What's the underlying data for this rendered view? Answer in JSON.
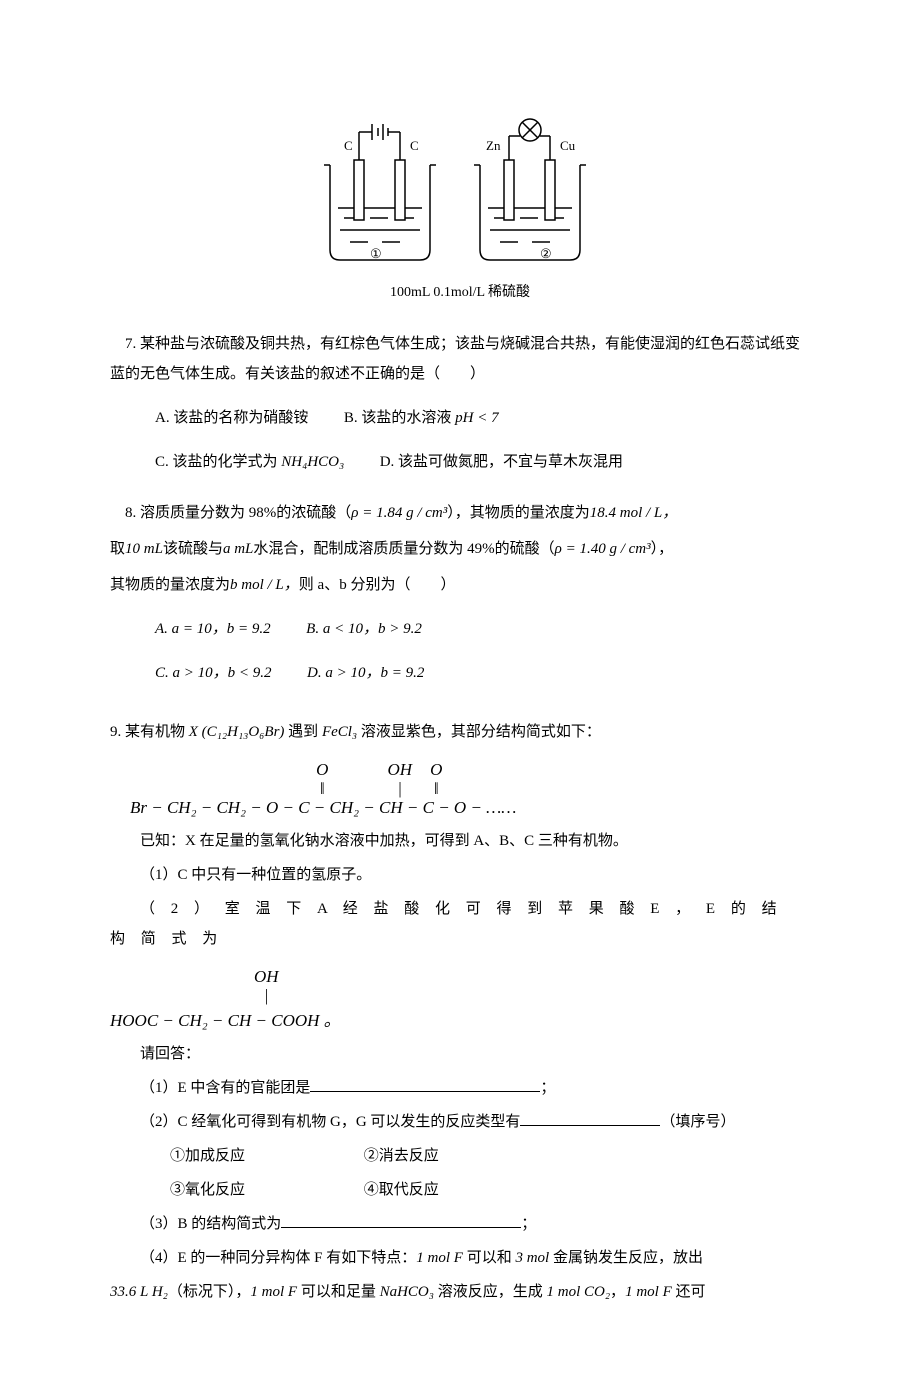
{
  "diagram": {
    "cell1": {
      "left_electrode": "C",
      "right_electrode": "C",
      "label": "①",
      "has_battery": true
    },
    "cell2": {
      "left_electrode": "Zn",
      "right_electrode": "Cu",
      "label": "②",
      "has_bulb": true
    },
    "caption": "100mL 0.1mol/L 稀硫酸",
    "stroke_color": "#000000",
    "bg_color": "#ffffff",
    "font_size": 13
  },
  "q7": {
    "stem": "7. 某种盐与浓硫酸及铜共热，有红棕色气体生成；该盐与烧碱混合共热，有能使湿润的红色石蕊试纸变蓝的无色气体生成。有关该盐的叙述不正确的是（　　）",
    "A": "A.  该盐的名称为硝酸铵",
    "B_pre": "B.  该盐的水溶液 ",
    "B_math": "pH < 7",
    "C_pre": "C.  该盐的化学式为 ",
    "C_math": "NH₄HCO₃",
    "D": "D.  该盐可做氮肥，不宜与草木灰混用"
  },
  "q8": {
    "line1_pre": "8. 溶质质量分数为 98%的浓硫酸（",
    "rho1": "ρ = 1.84 g / cm³",
    "line1_mid": "），其物质的量浓度为",
    "conc1": "18.4 mol / L，",
    "line2_pre": "取",
    "vol": "10 mL",
    "line2_mid1": "该硫酸与",
    "a_ml": "a mL",
    "line2_mid2": "水混合，配制成溶质质量分数为 49%的硫酸（",
    "rho2": "ρ = 1.40 g / cm³",
    "line2_end": "），",
    "line3_pre": "其物质的量浓度为",
    "bmol": "b mol / L，",
    "line3_end": "则 a、b 分别为（　　）",
    "A": "A.  a = 10，b = 9.2",
    "B": "B.  a < 10，b > 9.2",
    "C": "C.  a > 10，b < 9.2",
    "D": "D.  a > 10，b = 9.2"
  },
  "q9": {
    "stem_pre": "9. 某有机物 ",
    "X": "X (C₁₂H₁₃O₆Br)",
    "stem_mid": " 遇到 ",
    "fecl3": "FeCl₃",
    "stem_end": " 溶液显紫色，其部分结构简式如下：",
    "structure_top_O1": "O",
    "structure_top_OH": "OH",
    "structure_top_O2": "O",
    "structure_main": "Br − CH₂ − CH₂ − O − C − CH₂ − CH − C − O − ……",
    "known": "已知：X 在足量的氢氧化钠水溶液中加热，可得到 A、B、C 三种有机物。",
    "p1": "（1）C 中只有一种位置的氢原子。",
    "p2": "（ 2 ） 室 温 下  A  经 盐 酸 化 可 得 到 苹 果 酸  E ， E  的 结 构 简 式 为",
    "malic_top": "OH",
    "malic_main": "HOOC − CH₂ − CH − COOH 。",
    "ans_label": "请回答：",
    "a1": "（1）E 中含有的官能团是",
    "a1_end": "；",
    "a2": "（2）C 经氧化可得到有机物 G，G 可以发生的反应类型有",
    "a2_end": "（填序号）",
    "opt1": "①加成反应",
    "opt2": "②消去反应",
    "opt3": "③氧化反应",
    "opt4": "④取代反应",
    "a3": "（3）B 的结构简式为",
    "a3_end": "；",
    "a4_pre": "（4）E 的一种同分异构体 F 有如下特点：",
    "a4_m1": "1 mol F",
    "a4_mid1": " 可以和 ",
    "a4_m2": "3 mol",
    "a4_mid2": " 金属钠发生反应，放出",
    "a4_line2_m1": "33.6 L H₂",
    "a4_line2_mid1": "（标况下），",
    "a4_line2_m2": "1 mol F",
    "a4_line2_mid2": " 可以和足量 ",
    "a4_line2_m3": "NaHCO₃",
    "a4_line2_mid3": " 溶液反应，生成 ",
    "a4_line2_m4": "1 mol CO₂",
    "a4_line2_mid4": "，",
    "a4_line2_m5": "1 mol F",
    "a4_line2_end": " 还可"
  },
  "blanks": {
    "w1": 230,
    "w2": 140,
    "w3": 240
  }
}
